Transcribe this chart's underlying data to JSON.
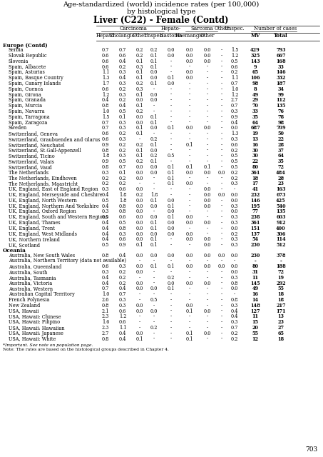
{
  "title_line1": "Age-standardized (world) incidence rates (per 100,000)",
  "title_line2": "by histological type",
  "title_line3": "Liver (C22) - Female (Contd)",
  "sections": [
    {
      "name": "Europe (Contd)",
      "rows": [
        [
          "Serbia",
          "0.7",
          "0.7",
          "0.2",
          "0.2",
          "0.0",
          "0.0",
          "0.0",
          "-",
          "1.5",
          "429",
          "793"
        ],
        [
          "Slovak Republic",
          "0.6",
          "0.6",
          "0.2",
          "0.1",
          "0.0",
          "0.0",
          "0.0",
          "-",
          "1.2",
          "325",
          "667"
        ],
        [
          "Slovenia",
          "0.6",
          "0.4",
          "0.1",
          "0.1",
          "-",
          "0.0",
          "0.0",
          "-",
          "0.5",
          "143",
          "168"
        ],
        [
          "Spain, Albacete",
          "0.6",
          "0.2",
          "0.3",
          "0.1",
          "-",
          "-",
          "-",
          "-",
          "0.6",
          "9",
          "33"
        ],
        [
          "Spain, Asturias",
          "1.1",
          "0.3",
          "0.1",
          "0.0",
          "-",
          "0.0",
          "-",
          "-",
          "0.2",
          "65",
          "146"
        ],
        [
          "Spain, Basque Country",
          "1.3",
          "0.4",
          "0.1",
          "0.0",
          "0.1",
          "0.0",
          "-",
          "-",
          "1.1",
          "106",
          "332"
        ],
        [
          "Spain, Canary Islands",
          "1.7",
          "0.3",
          "0.2",
          "0.1",
          "0.0",
          "-",
          "-",
          "-",
          "0.7",
          "98",
          "187"
        ],
        [
          "Spain, Cuenca",
          "0.6",
          "0.2",
          "0.3",
          "-",
          "-",
          "-",
          "-",
          "-",
          "1.0",
          "8",
          "34"
        ],
        [
          "Spain, Girona",
          "1.2",
          "0.3",
          "0.1",
          "0.0",
          "-",
          "-",
          "-",
          "-",
          "1.2",
          "49",
          "99"
        ],
        [
          "Spain, Granada",
          "0.4",
          "0.2",
          "0.0",
          "0.0",
          "-",
          "-",
          "-",
          "-",
          "2.7",
          "29",
          "112"
        ],
        [
          "Spain, Murcia",
          "0.8",
          "0.4",
          "0.1",
          "-",
          "-",
          "-",
          "-",
          "-",
          "0.7",
          "70",
          "135"
        ],
        [
          "Spain, Navarra",
          "1.0",
          "0.5",
          "0.2",
          "-",
          "-",
          "-",
          "-",
          "-",
          "0.3",
          "33",
          "76"
        ],
        [
          "Spain, Tarragona",
          "1.5",
          "0.1",
          "0.0",
          "0.1",
          "-",
          "-",
          "-",
          "-",
          "0.9",
          "35",
          "78"
        ],
        [
          "Spain, Zaragoza",
          "0.7",
          "0.3",
          "0.0",
          "0.1",
          "-",
          "-",
          "-",
          "-",
          "0.4",
          "64",
          "98"
        ],
        [
          "Sweden",
          "0.7",
          "0.3",
          "0.1",
          "0.0",
          "0.1",
          "0.0",
          "0.0",
          "-",
          "0.0",
          "687",
          "709"
        ],
        [
          "Switzerland, Geneva",
          "0.6",
          "0.2",
          "0.1",
          "-",
          "-",
          "-",
          "-",
          "-",
          "1.3",
          "19",
          "50"
        ],
        [
          "Switzerland, Graubuenden and Glarus",
          "0.6",
          "0.3",
          "-",
          "0.2",
          "-",
          "-",
          "-",
          "-",
          "0.3",
          "13",
          "22"
        ],
        [
          "Switzerland, Neuchatel",
          "0.9",
          "0.2",
          "0.2",
          "0.1",
          "-",
          "0.1",
          "-",
          "-",
          "0.6",
          "16",
          "28"
        ],
        [
          "Switzerland, St.Gall-Appenzell",
          "0.8",
          "0.2",
          "0.1",
          "0.0",
          "-",
          "-",
          "-",
          "-",
          "0.2",
          "30",
          "37"
        ],
        [
          "Switzerland, Ticino",
          "1.8",
          "0.3",
          "0.1",
          "0.2",
          "0.5",
          "-",
          "-",
          "-",
          "0.5",
          "30",
          "64"
        ],
        [
          "Switzerland, Valais",
          "0.9",
          "0.5",
          "0.2",
          "0.1",
          "-",
          "-",
          "-",
          "-",
          "0.5",
          "22",
          "35"
        ],
        [
          "Switzerland, Vaud",
          "0.8",
          "0.7",
          "0.0",
          "0.0",
          "0.1",
          "0.1",
          "0.1",
          "-",
          "0.5",
          "80",
          "72"
        ],
        [
          "The Netherlands",
          "0.3",
          "0.1",
          "0.0",
          "0.0",
          "0.1",
          "0.0",
          "0.0",
          "0.0",
          "0.2",
          "361",
          "484"
        ],
        [
          "The Netherlands, Eindhoven",
          "0.2",
          "0.2",
          "0.0",
          "-",
          "0.1",
          "-",
          "-",
          "-",
          "0.2",
          "18",
          "28"
        ],
        [
          "The Netherlands, Maastricht",
          "0.2",
          "0.2",
          "-",
          "-",
          "0.1",
          "0.0",
          "-",
          "-",
          "0.3",
          "17",
          "23"
        ],
        [
          "UK, England, East of England Region",
          "0.3",
          "0.6",
          "0.0",
          "-",
          "-",
          "-",
          "0.0",
          "-",
          "-",
          "41",
          "163"
        ],
        [
          "UK, England, Merseyside and Cheshire",
          "0.4",
          "1.8",
          "0.2",
          "1.8",
          "-",
          "-",
          "0.0",
          "0.0",
          "0.0",
          "232",
          "673"
        ],
        [
          "UK, England, North Western",
          "0.5",
          "1.8",
          "0.0",
          "0.1",
          "0.0",
          "-",
          "0.0",
          "-",
          "0.0",
          "146",
          "425"
        ],
        [
          "UK, England, Northern And Yorkshire",
          "0.4",
          "0.8",
          "0.0",
          "0.0",
          "0.1",
          "-",
          "0.0",
          "-",
          "0.3",
          "195",
          "540"
        ],
        [
          "UK, England, Oxford Region",
          "0.3",
          "0.8",
          "0.0",
          "-",
          "0.0",
          "-",
          "-",
          "-",
          "0.0",
          "77",
          "135"
        ],
        [
          "UK, England, South and Western Regions",
          "0.5",
          "0.6",
          "0.0",
          "0.0",
          "0.1",
          "0.0",
          "-",
          "-",
          "0.3",
          "238",
          "603"
        ],
        [
          "UK, England, Thames",
          "0.4",
          "0.5",
          "0.0",
          "0.1",
          "0.0",
          "0.0",
          "0.0",
          "-",
          "0.3",
          "361",
          "912"
        ],
        [
          "UK, England, Trent",
          "0.4",
          "0.8",
          "0.0",
          "0.1",
          "0.0",
          "-",
          "-",
          "-",
          "0.0",
          "151",
          "400"
        ],
        [
          "UK, England, West Midlands",
          "0.4",
          "0.3",
          "0.0",
          "0.0",
          "0.0",
          "0.0",
          "-",
          "-",
          "0.2",
          "137",
          "306"
        ],
        [
          "UK, Northern Ireland",
          "0.4",
          "0.6",
          "0.0",
          "0.1",
          "-",
          "0.0",
          "0.0",
          "-",
          "0.3",
          "54",
          "114"
        ],
        [
          "UK, Scotland",
          "0.5",
          "0.9",
          "0.1",
          "0.1",
          "-",
          "-",
          "0.0",
          "-",
          "0.3",
          "230",
          "512"
        ]
      ]
    },
    {
      "name": "Oceania",
      "rows": [
        [
          "Australia, New South Wales",
          "0.8",
          "0.4",
          "0.0",
          "0.0",
          "0.0",
          "0.0",
          "0.0",
          "0.0",
          "0.0",
          "230",
          "378"
        ],
        [
          "Australia, Northern Territory (data not available)",
          "-",
          "-",
          "-",
          "-",
          "-",
          "-",
          "-",
          "-",
          "-",
          "-",
          "-"
        ],
        [
          "Australia, Queensland",
          "0.6",
          "0.3",
          "0.0",
          "0.1",
          "0.1",
          "0.0",
          "0.0",
          "0.0",
          "0.0",
          "80",
          "188"
        ],
        [
          "Australia, South",
          "0.3",
          "0.2",
          "0.0",
          "-",
          "-",
          "-",
          "-",
          "-",
          "0.0",
          "31",
          "72"
        ],
        [
          "Australia, Tasmania",
          "0.4",
          "0.2",
          "-",
          "-",
          "0.2",
          "-",
          "-",
          "-",
          "0.3",
          "11",
          "19"
        ],
        [
          "Australia, Victoria",
          "0.4",
          "0.2",
          "0.0",
          "-",
          "0.0",
          "0.0",
          "0.0",
          "-",
          "0.8",
          "145",
          "292"
        ],
        [
          "Australia, Western",
          "0.7",
          "0.4",
          "0.0",
          "0.0",
          "0.1",
          "-",
          "-",
          "-",
          "0.0",
          "49",
          "55"
        ],
        [
          "Australian Capital Territory",
          "1.0",
          "0.7",
          "-",
          "-",
          "-",
          "-",
          "-",
          "-",
          "-",
          "16",
          "18"
        ],
        [
          "French Polynesia",
          "2.6",
          "0.3",
          "-",
          "0.5",
          "-",
          "-",
          "-",
          "-",
          "0.8",
          "14",
          "18"
        ],
        [
          "New Zealand",
          "0.8",
          "0.3",
          "0.0",
          "-",
          "-",
          "0.0",
          "-",
          "-",
          "0.3",
          "148",
          "217"
        ],
        [
          "USA, Hawaii",
          "2.1",
          "0.6",
          "0.0",
          "0.0",
          "-",
          "0.1",
          "0.0",
          "-",
          "0.4",
          "127",
          "171"
        ],
        [
          "USA, Hawaii: Chinese",
          "2.3",
          "1.2",
          "-",
          "-",
          "-",
          "-",
          "-",
          "-",
          "0.4",
          "11",
          "13"
        ],
        [
          "USA, Hawaii: Filipino",
          "1.6",
          "0.6",
          "-",
          "-",
          "-",
          "-",
          "-",
          "-",
          "0.3",
          "15",
          "23"
        ],
        [
          "USA, Hawaii: Hawaiian",
          "2.3",
          "1.1",
          "-",
          "0.2",
          "-",
          "-",
          "-",
          "-",
          "0.7",
          "20",
          "27"
        ],
        [
          "USA, Hawaii: Japanese",
          "2.7",
          "0.4",
          "0.0",
          "-",
          "-",
          "0.1",
          "0.0",
          "-",
          "0.2",
          "55",
          "65"
        ],
        [
          "USA, Hawaii: White",
          "0.8",
          "0.4",
          "0.1",
          "-",
          "-",
          "0.1",
          "-",
          "-",
          "0.2",
          "12",
          "18"
        ]
      ]
    }
  ],
  "col_x": {
    "name": 4,
    "hepato": 148,
    "cholangio": 172,
    "other_carc": 196,
    "unspec_carc": 216,
    "hepatoblast": 240,
    "haemangio": 266,
    "other_sarc": 291,
    "other": 311,
    "unspec": 329,
    "mv": 358,
    "total": 394
  },
  "footnote1": "*Important. See note on population page.",
  "footnote2": "Note: The rates are based on the histological groups described in Chapter 4.",
  "page_number": "703",
  "title_fontsize": 7.0,
  "title_bold_fontsize": 8.5,
  "header_fontsize": 5.0,
  "data_fontsize": 4.7,
  "section_fontsize": 5.2
}
